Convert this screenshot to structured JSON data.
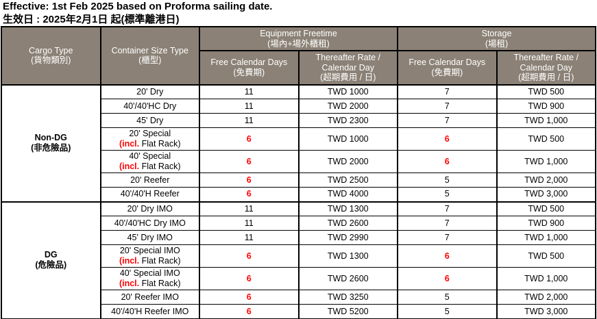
{
  "title": {
    "line1": "Effective: 1st Feb 2025 based on Proforma sailing date.",
    "line2": "生效日 : 2025年2月1日 起(標準離港日)"
  },
  "table": {
    "colors": {
      "header_bg": "#8B8176",
      "header_text": "#FFFFFF",
      "highlight_red": "#FF0000",
      "border": "#000000"
    },
    "headers": {
      "cargo_type": {
        "en": "Cargo Type",
        "zh": "(貨物類別)"
      },
      "container_size_type": {
        "en": "Container Size Type",
        "zh": "(櫃型)"
      },
      "equipment_freetime": {
        "en": "Equipment Freetime",
        "zh": "(場內+場外櫃租)"
      },
      "storage": {
        "en": "Storage",
        "zh": "(場租)"
      },
      "free_days": {
        "en": "Free Calendar Days",
        "zh": "(免費期)"
      },
      "thereafter": {
        "en1": "Thereafter Rate /",
        "en2": "Calendar Day",
        "zh": "(超期費用 / 日)"
      }
    },
    "sections": [
      {
        "cargo_en": "Non-DG",
        "cargo_zh": "(非危險品)",
        "rows": [
          {
            "label": "20' Dry",
            "eq_free": "11",
            "eq_free_red": false,
            "eq_rate": "TWD 1000",
            "st_free": "7",
            "st_free_red": false,
            "st_rate": "TWD 500"
          },
          {
            "label": "40'/40'HC Dry",
            "eq_free": "11",
            "eq_free_red": false,
            "eq_rate": "TWD 2000",
            "st_free": "7",
            "st_free_red": false,
            "st_rate": "TWD 900"
          },
          {
            "label": "45' Dry",
            "eq_free": "11",
            "eq_free_red": false,
            "eq_rate": "TWD 2300",
            "st_free": "7",
            "st_free_red": false,
            "st_rate": "TWD 1,000"
          },
          {
            "label": "20' Special",
            "sub_red": "(incl.",
            "sub_black": " Flat Rack)",
            "eq_free": "6",
            "eq_free_red": true,
            "eq_rate": "TWD 1000",
            "st_free": "6",
            "st_free_red": true,
            "st_rate": "TWD 500"
          },
          {
            "label": "40' Special",
            "sub_red": "(incl.",
            "sub_black": " Flat Rack)",
            "eq_free": "6",
            "eq_free_red": true,
            "eq_rate": "TWD 2000",
            "st_free": "6",
            "st_free_red": true,
            "st_rate": "TWD 1,000"
          },
          {
            "label": "20' Reefer",
            "eq_free": "6",
            "eq_free_red": true,
            "eq_rate": "TWD 2500",
            "st_free": "5",
            "st_free_red": false,
            "st_rate": "TWD 2,000"
          },
          {
            "label": "40'/40'H Reefer",
            "eq_free": "6",
            "eq_free_red": true,
            "eq_rate": "TWD 4000",
            "st_free": "5",
            "st_free_red": false,
            "st_rate": "TWD 3,000"
          }
        ]
      },
      {
        "cargo_en": "DG",
        "cargo_zh": "(危險品)",
        "rows": [
          {
            "label": "20' Dry IMO",
            "eq_free": "11",
            "eq_free_red": false,
            "eq_rate": "TWD 1300",
            "st_free": "7",
            "st_free_red": false,
            "st_rate": "TWD 500"
          },
          {
            "label": "40'/40'HC Dry IMO",
            "eq_free": "11",
            "eq_free_red": false,
            "eq_rate": "TWD 2600",
            "st_free": "7",
            "st_free_red": false,
            "st_rate": "TWD 900"
          },
          {
            "label": "45' Dry IMO",
            "eq_free": "11",
            "eq_free_red": false,
            "eq_rate": "TWD 2990",
            "st_free": "7",
            "st_free_red": false,
            "st_rate": "TWD 1,000"
          },
          {
            "label": "20' Special IMO",
            "sub_red": "(incl.",
            "sub_black": " Flat Rack)",
            "eq_free": "6",
            "eq_free_red": true,
            "eq_rate": "TWD 1300",
            "st_free": "6",
            "st_free_red": true,
            "st_rate": "TWD 500"
          },
          {
            "label": "40' Special IMO",
            "sub_red": "(incl.",
            "sub_black": " Flat Rack)",
            "eq_free": "6",
            "eq_free_red": true,
            "eq_rate": "TWD 2600",
            "st_free": "6",
            "st_free_red": true,
            "st_rate": "TWD 1,000"
          },
          {
            "label": "20' Reefer IMO",
            "eq_free": "6",
            "eq_free_red": true,
            "eq_rate": "TWD 3250",
            "st_free": "5",
            "st_free_red": false,
            "st_rate": "TWD 2,000"
          },
          {
            "label": "40'/40'H Reefer IMO",
            "eq_free": "6",
            "eq_free_red": true,
            "eq_rate": "TWD 5200",
            "st_free": "5",
            "st_free_red": false,
            "st_rate": "TWD 3,000"
          }
        ]
      }
    ]
  }
}
